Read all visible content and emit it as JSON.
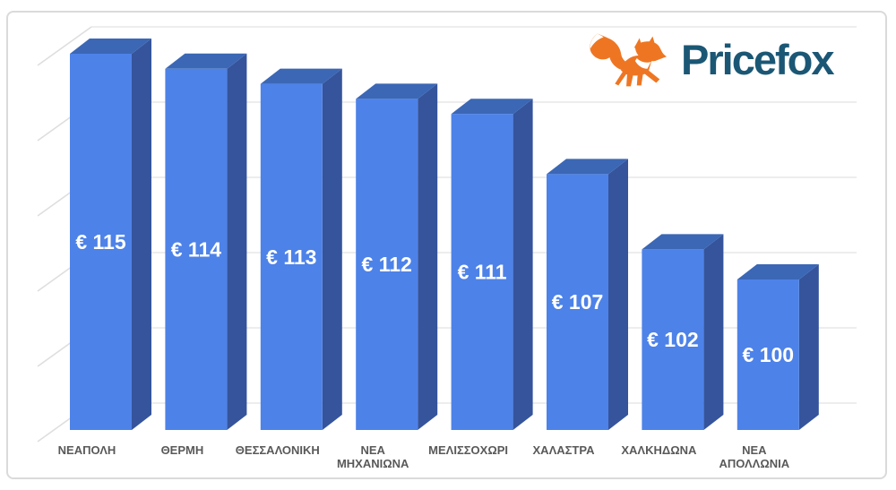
{
  "logo": {
    "brand": "Pricefox",
    "fox_color": "#ee7623",
    "text_color": "#1b5775"
  },
  "chart_data": {
    "type": "bar",
    "style_3d": true,
    "title": "",
    "xlabel": "",
    "ylabel": "",
    "currency": "EUR",
    "categories": [
      [
        "ΝΕΑΠΟΛΗ"
      ],
      [
        "ΘΕΡΜΗ"
      ],
      [
        "ΘΕΣΣΑΛΟΝΙΚΗ"
      ],
      [
        "ΝΕΑ",
        "ΜΗΧΑΝΙΩΝΑ"
      ],
      [
        "ΜΕΛΙΣΣΟΧΩΡΙ"
      ],
      [
        "ΧΑΛΑΣΤΡΑ"
      ],
      [
        "ΧΑΛΚΗΔΩΝΑ"
      ],
      [
        "ΝΕΑ",
        "ΑΠΟΛΛΩΝΙΑ"
      ]
    ],
    "values": [
      115,
      114,
      113,
      112,
      111,
      107,
      102,
      100
    ],
    "bar_labels": [
      "€ 115",
      "€ 114",
      "€ 113",
      "€ 112",
      "€ 111",
      "€ 107",
      "€ 102",
      "€ 100"
    ],
    "ylim": [
      90,
      115
    ],
    "grid_step": 5,
    "grid": true,
    "legend": "none",
    "colors": {
      "front": "#4d82e8",
      "side": "#35549b",
      "top": "#3b67b5",
      "grid": "#e7e7e7",
      "grid_diag": "#dedede",
      "value_text": "#ffffff",
      "category_text": "#595959"
    }
  }
}
